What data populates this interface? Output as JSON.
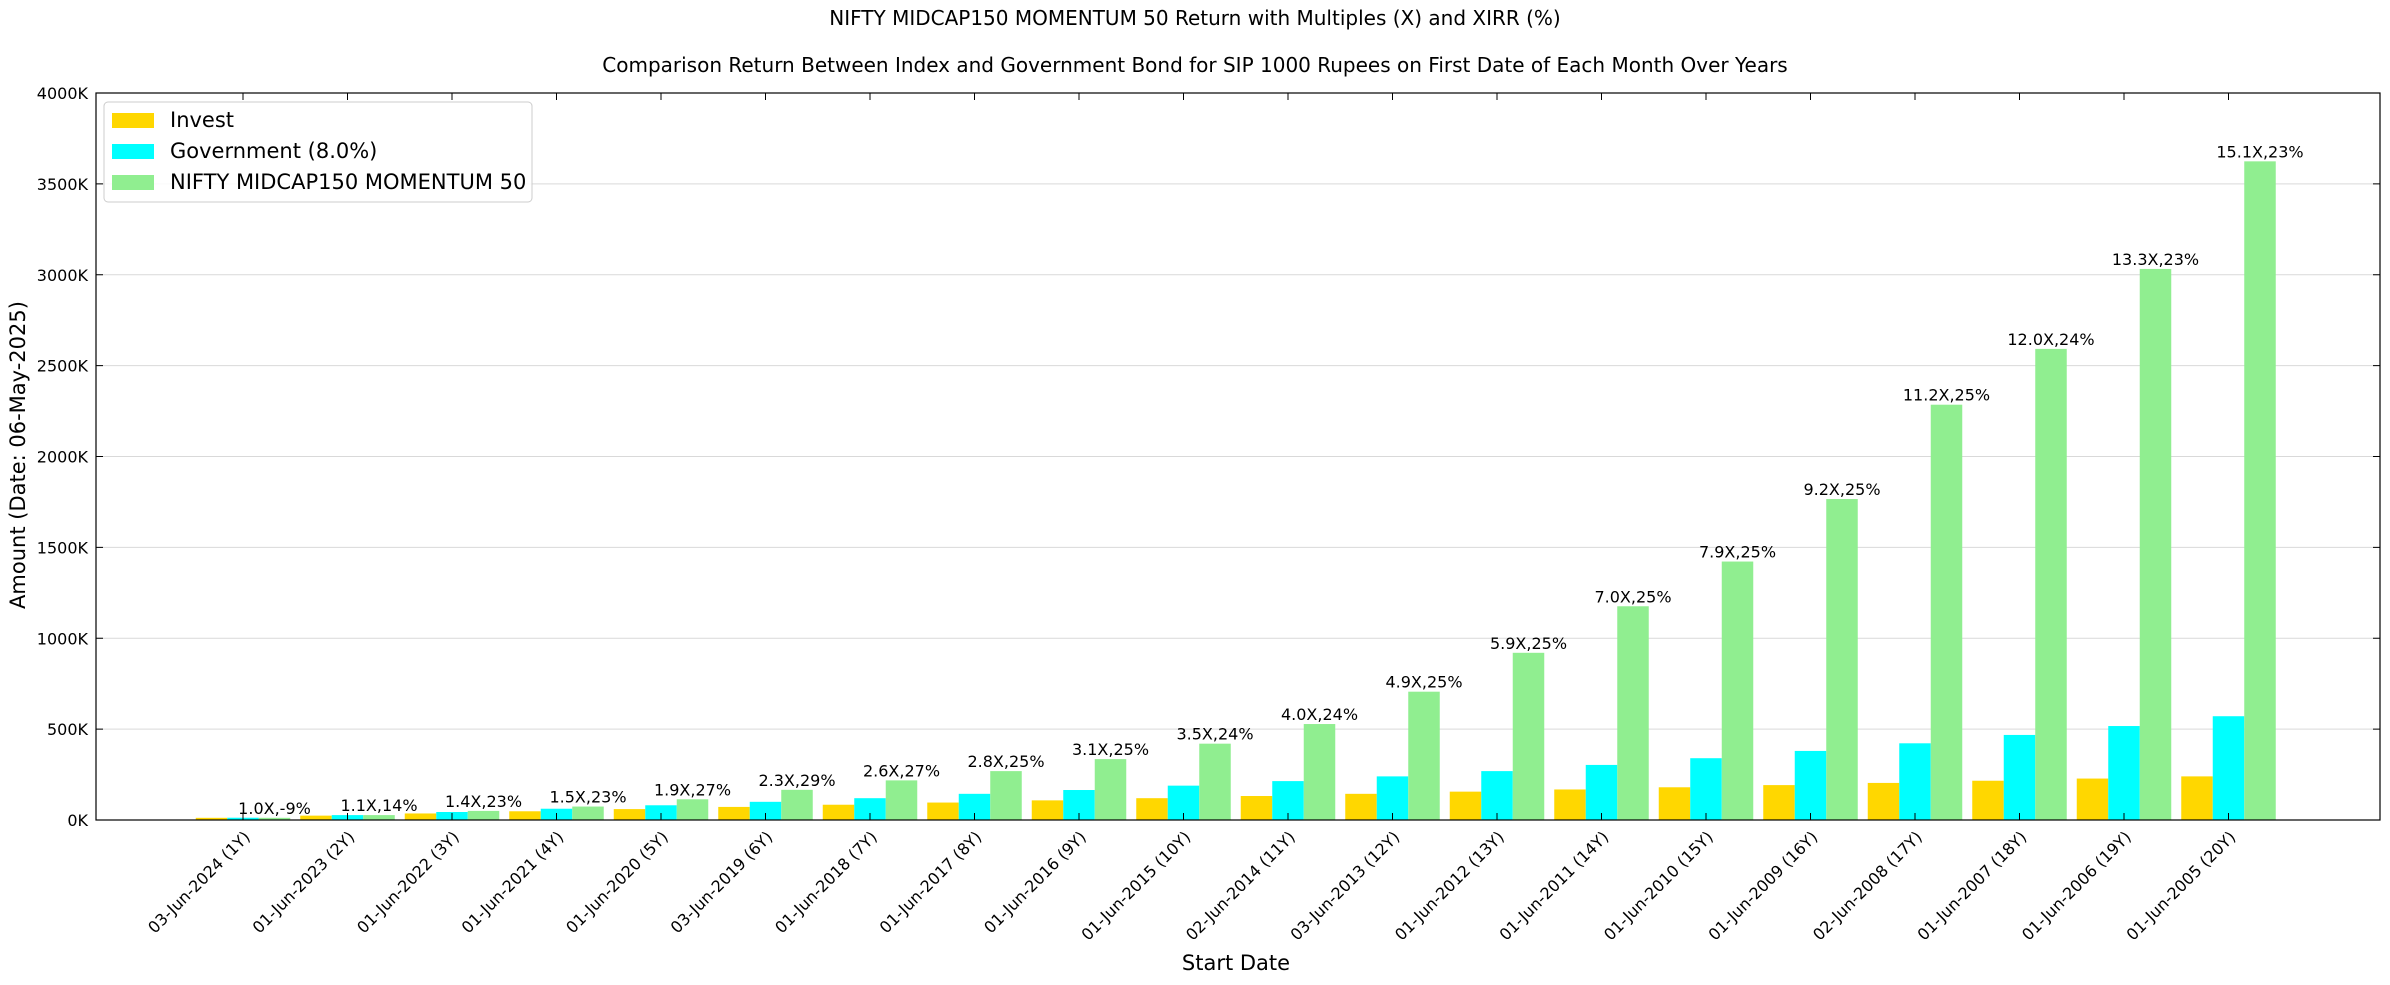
{
  "chart_data": {
    "type": "bar",
    "title": "NIFTY MIDCAP150 MOMENTUM 50 Return with Multiples (X) and XIRR (%)",
    "subtitle": "Comparison Return Between Index and Government Bond for SIP 1000 Rupees on First Date of Each Month Over Years",
    "xlabel": "Start Date",
    "ylabel": "Amount (Date: 06-May-2025)",
    "ylim": [
      0,
      4000
    ],
    "y_unit_suffix": "K",
    "yticks": [
      0,
      500,
      1000,
      1500,
      2000,
      2500,
      3000,
      3500,
      4000
    ],
    "ytick_labels": [
      "0K",
      "500K",
      "1000K",
      "1500K",
      "2000K",
      "2500K",
      "3000K",
      "3500K",
      "4000K"
    ],
    "grid": true,
    "legend_position": "top-left",
    "categories": [
      "03-Jun-2024 (1Y)",
      "01-Jun-2023 (2Y)",
      "01-Jun-2022 (3Y)",
      "01-Jun-2021 (4Y)",
      "01-Jun-2020 (5Y)",
      "03-Jun-2019 (6Y)",
      "01-Jun-2018 (7Y)",
      "01-Jun-2017 (8Y)",
      "01-Jun-2016 (9Y)",
      "01-Jun-2015 (10Y)",
      "02-Jun-2014 (11Y)",
      "03-Jun-2013 (12Y)",
      "01-Jun-2012 (13Y)",
      "01-Jun-2011 (14Y)",
      "01-Jun-2010 (15Y)",
      "01-Jun-2009 (16Y)",
      "02-Jun-2008 (17Y)",
      "01-Jun-2007 (18Y)",
      "01-Jun-2006 (19Y)",
      "01-Jun-2005 (20Y)"
    ],
    "series": [
      {
        "name": "Invest",
        "color": "#ffd700",
        "values": [
          12,
          24,
          36,
          48,
          60,
          72,
          84,
          96,
          108,
          120,
          132,
          144,
          156,
          168,
          180,
          192,
          204,
          216,
          228,
          240
        ]
      },
      {
        "name": "Government (8.0%)",
        "color": "#00ffff",
        "values": [
          12.5,
          27,
          44,
          62,
          81,
          100,
          120,
          144,
          165,
          189,
          214,
          240,
          269,
          303,
          340,
          380,
          422,
          468,
          517,
          571
        ]
      },
      {
        "name": "NIFTY MIDCAP150 MOMENTUM 50",
        "color": "#90ee90",
        "values": [
          12,
          27,
          50,
          74,
          114,
          166,
          218,
          269,
          335,
          420,
          528,
          706,
          920,
          1176,
          1422,
          1766,
          2285,
          2592,
          3032,
          3624
        ]
      }
    ],
    "annotations": [
      "1.0X,-9%",
      "1.1X,14%",
      "1.4X,23%",
      "1.5X,23%",
      "1.9X,27%",
      "2.3X,29%",
      "2.6X,27%",
      "2.8X,25%",
      "3.1X,25%",
      "3.5X,24%",
      "4.0X,24%",
      "4.9X,25%",
      "5.9X,25%",
      "7.0X,25%",
      "7.9X,25%",
      "9.2X,25%",
      "11.2X,25%",
      "12.0X,24%",
      "13.3X,23%",
      "15.1X,23%"
    ]
  }
}
